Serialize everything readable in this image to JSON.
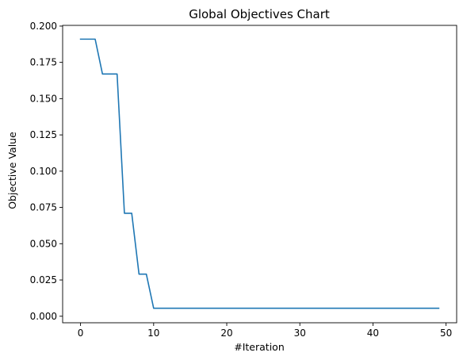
{
  "chart_data": {
    "type": "line",
    "title": "Global Objectives Chart",
    "xlabel": "#Iteration",
    "ylabel": "Objective Value",
    "xlim": [
      -2.45,
      51.45
    ],
    "ylim": [
      -0.0045,
      0.2005
    ],
    "x_ticks": [
      0,
      10,
      20,
      30,
      40,
      50
    ],
    "x_tick_labels": [
      "0",
      "10",
      "20",
      "30",
      "40",
      "50"
    ],
    "y_ticks": [
      0,
      0.025,
      0.05,
      0.075,
      0.1,
      0.125,
      0.15,
      0.175,
      0.2
    ],
    "y_tick_labels": [
      "0.000",
      "0.025",
      "0.050",
      "0.075",
      "0.100",
      "0.125",
      "0.150",
      "0.175",
      "0.200"
    ],
    "grid": false,
    "legend": false,
    "color": "#1f77b4",
    "series": [
      {
        "x": [
          0,
          1,
          2,
          3,
          4,
          5,
          6,
          7,
          8,
          9,
          10,
          11,
          12,
          13,
          14,
          15,
          16,
          17,
          18,
          19,
          20,
          21,
          22,
          23,
          24,
          25,
          26,
          27,
          28,
          29,
          30,
          31,
          32,
          33,
          34,
          35,
          36,
          37,
          38,
          39,
          40,
          41,
          42,
          43,
          44,
          45,
          46,
          47,
          48,
          49
        ],
        "y": [
          0.191,
          0.191,
          0.191,
          0.167,
          0.167,
          0.167,
          0.071,
          0.071,
          0.029,
          0.029,
          0.0055,
          0.0055,
          0.0055,
          0.0055,
          0.0055,
          0.0055,
          0.0055,
          0.0055,
          0.0055,
          0.0055,
          0.0055,
          0.0055,
          0.0055,
          0.0055,
          0.0055,
          0.0055,
          0.0055,
          0.0055,
          0.0055,
          0.0055,
          0.0055,
          0.0055,
          0.0055,
          0.0055,
          0.0055,
          0.0055,
          0.0055,
          0.0055,
          0.0055,
          0.0055,
          0.0055,
          0.0055,
          0.0055,
          0.0055,
          0.0055,
          0.0055,
          0.0055,
          0.0055,
          0.0055,
          0.0055
        ]
      }
    ]
  }
}
